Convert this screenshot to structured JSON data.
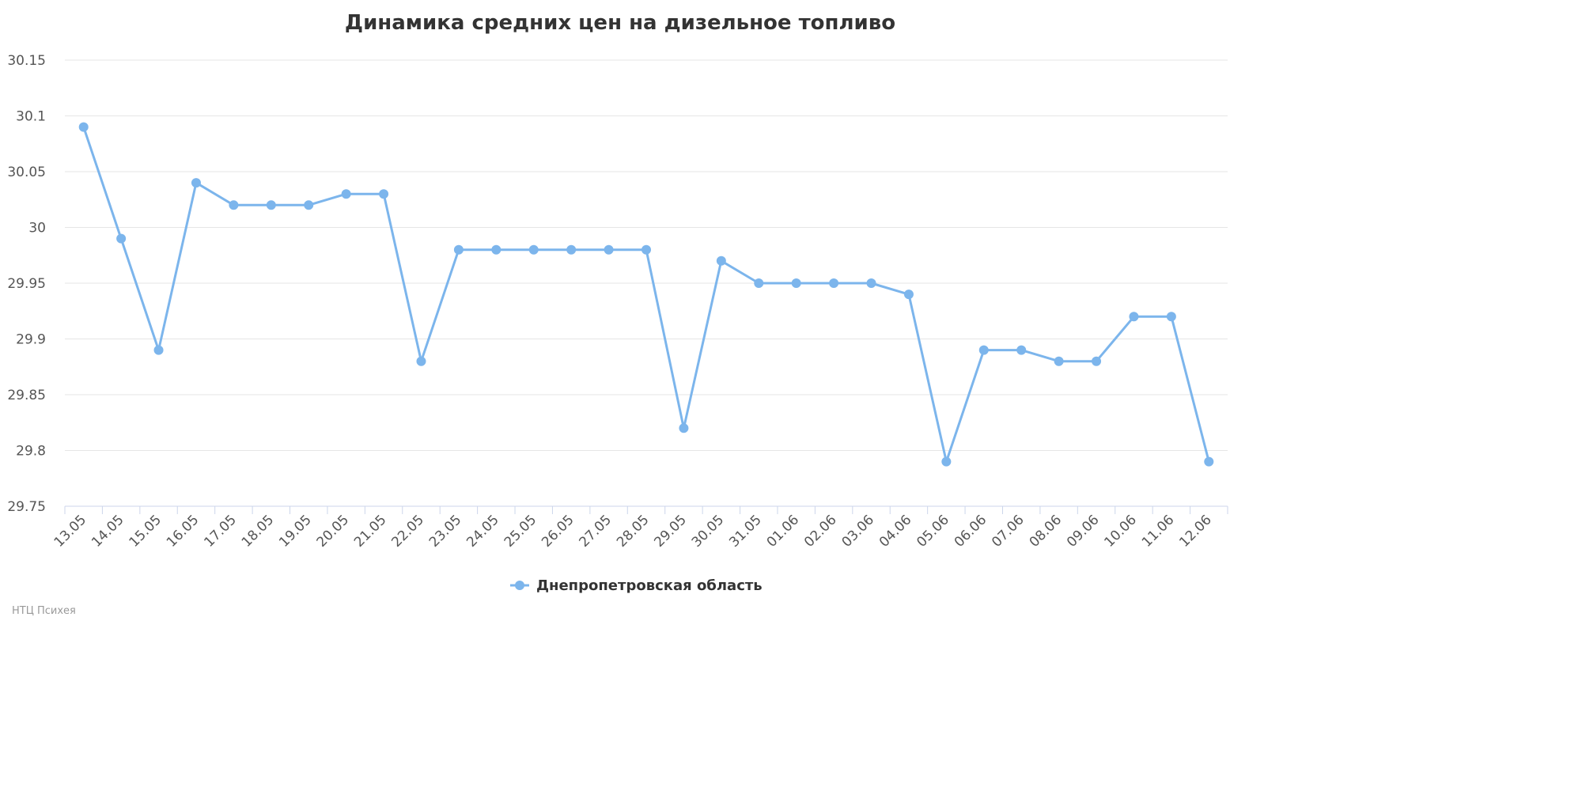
{
  "chart_data": {
    "type": "line",
    "title": "Динамика средних цен на дизельное топливо",
    "xlabel": "",
    "ylabel": "",
    "categories": [
      "13.05",
      "14.05",
      "15.05",
      "16.05",
      "17.05",
      "18.05",
      "19.05",
      "20.05",
      "21.05",
      "22.05",
      "23.05",
      "24.05",
      "25.05",
      "26.05",
      "27.05",
      "28.05",
      "29.05",
      "30.05",
      "31.05",
      "01.06",
      "02.06",
      "03.06",
      "04.06",
      "05.06",
      "06.06",
      "07.06",
      "08.06",
      "09.06",
      "10.06",
      "11.06",
      "12.06"
    ],
    "series": [
      {
        "name": "Днепропетровская область",
        "color": "#7cb5ec",
        "values": [
          30.09,
          29.99,
          29.89,
          30.04,
          30.02,
          30.02,
          30.02,
          30.03,
          30.03,
          29.88,
          29.98,
          29.98,
          29.98,
          29.98,
          29.98,
          29.98,
          29.82,
          29.97,
          29.95,
          29.95,
          29.95,
          29.95,
          29.94,
          29.79,
          29.89,
          29.89,
          29.88,
          29.88,
          29.92,
          29.92,
          29.79
        ]
      }
    ],
    "yticks": [
      "29.75",
      "29.8",
      "29.85",
      "29.9",
      "29.95",
      "30",
      "30.05",
      "30.1",
      "30.15"
    ],
    "ylim": [
      29.75,
      30.15
    ],
    "grid": true,
    "legend_position": "bottom-center"
  },
  "credit": "НТЦ Психея"
}
